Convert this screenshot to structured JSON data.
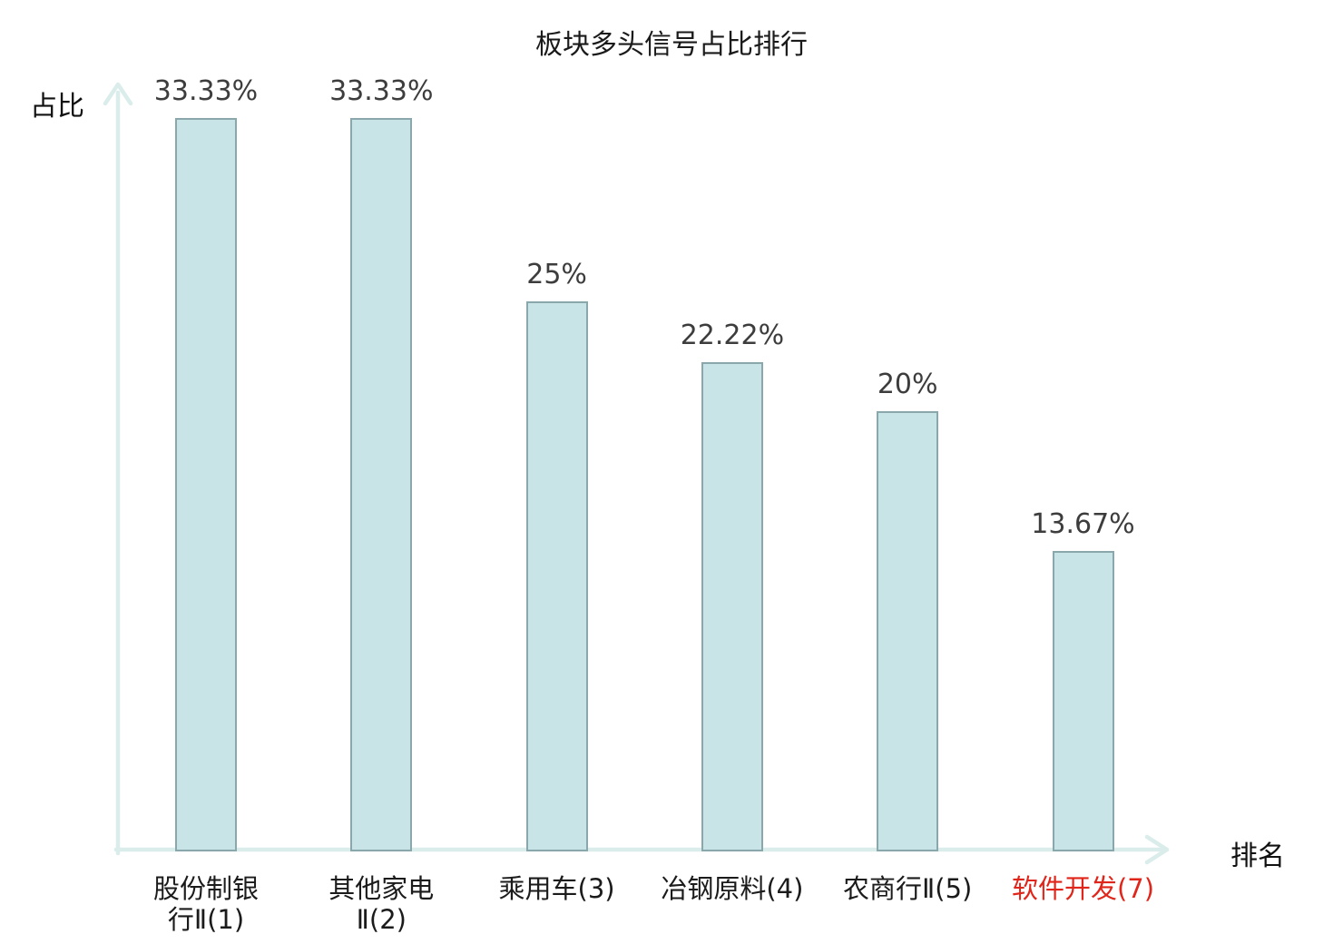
{
  "title": "板块多头信号占比排行",
  "y_axis_label": "占比",
  "x_axis_label": "排名",
  "colors": {
    "title": "#1a1a1a",
    "axis": "#daedea",
    "bar_fill": "#c9e4e7",
    "bar_border": "#8aa7ab",
    "value_label": "#3d3d3d",
    "category_label": "#1b1b1b",
    "highlight_label": "#e0251a"
  },
  "chart_data": {
    "type": "bar",
    "title": "板块多头信号占比排行",
    "xlabel": "排名",
    "ylabel": "占比",
    "categories": [
      "股份制银行Ⅱ(1)",
      "其他家电Ⅱ(2)",
      "乘用车(3)",
      "冶钢原料(4)",
      "农商行Ⅱ(5)",
      "软件开发(7)"
    ],
    "category_lines": [
      [
        "股份制银",
        "行Ⅱ(1)"
      ],
      [
        "其他家电",
        "Ⅱ(2)"
      ],
      [
        "乘用车(3)"
      ],
      [
        "冶钢原料(4)"
      ],
      [
        "农商行Ⅱ(5)"
      ],
      [
        "软件开发(7)"
      ]
    ],
    "values": [
      33.33,
      33.33,
      25,
      22.22,
      20,
      13.67
    ],
    "value_labels": [
      "33.33%",
      "33.33%",
      "25%",
      "22.22%",
      "20%",
      "13.67%"
    ],
    "highlighted_index": 5,
    "ylim": [
      0,
      35
    ],
    "grid": false,
    "legend": "none"
  }
}
